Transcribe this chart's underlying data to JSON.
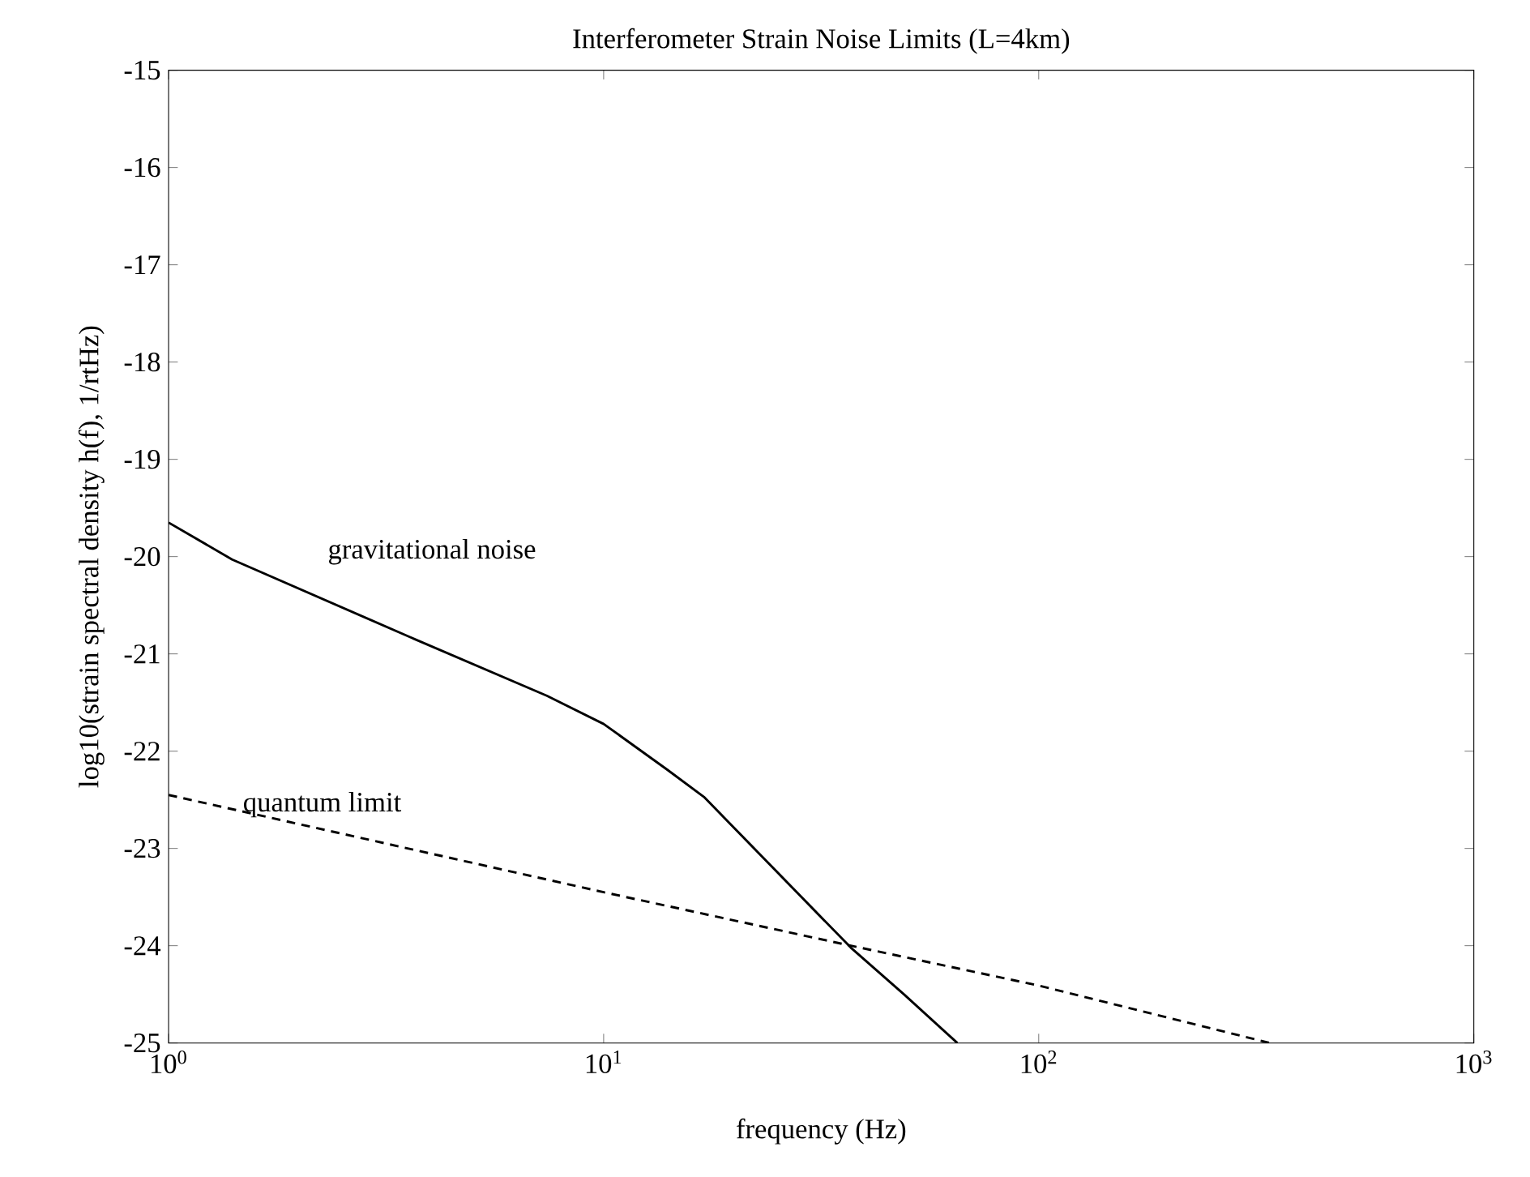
{
  "chart_data": {
    "type": "line",
    "title": "Interferometer Strain Noise Limits (L=4km)",
    "xlabel": "frequency (Hz)",
    "ylabel": "log10(strain spectral density h(f), 1/rtHz)",
    "log": "x",
    "xlim": [
      1,
      1000
    ],
    "ylim": [
      -25,
      -15
    ],
    "xticks": [
      {
        "value": 1,
        "label": "10$^{0}$"
      },
      {
        "value": 10,
        "label": "10$^{1}$"
      },
      {
        "value": 100,
        "label": "10$^{2}$"
      },
      {
        "value": 1000,
        "label": "10$^{3}$"
      }
    ],
    "yticks": [
      -25,
      -24,
      -23,
      -22,
      -21,
      -20,
      -19,
      -18,
      -17,
      -16,
      -15
    ],
    "marker": "none",
    "series": [
      {
        "color": "#000000",
        "line_style": "solid",
        "x": [
          1,
          1.4,
          3.6,
          7.4,
          10,
          14,
          17,
          37,
          49,
          65
        ],
        "values": [
          -19.65,
          -20.03,
          -20.83,
          -21.43,
          -21.72,
          -22.19,
          -22.47,
          -24.02,
          -24.5,
          -25
        ]
      },
      {
        "color": "#000000",
        "line_style": "dashed",
        "x": [
          1,
          10,
          37,
          100,
          340
        ],
        "values": [
          -22.45,
          -23.45,
          -24.0,
          -24.41,
          -25
        ]
      }
    ],
    "annotations": [
      "gravitational noise",
      "quantum limit"
    ]
  }
}
